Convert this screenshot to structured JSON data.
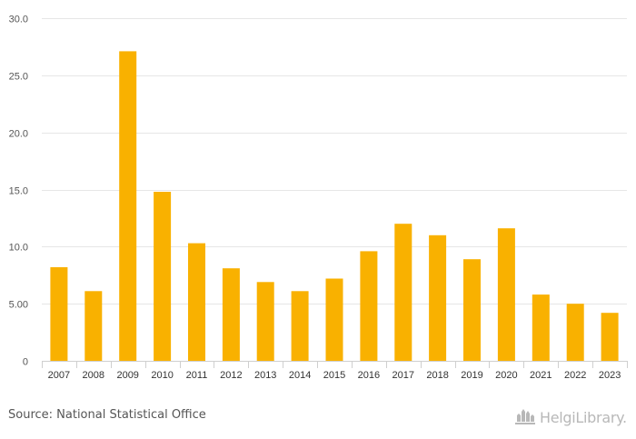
{
  "chart_data": {
    "type": "bar",
    "title": "",
    "xlabel": "",
    "ylabel": "",
    "categories": [
      "2007",
      "2008",
      "2009",
      "2010",
      "2011",
      "2012",
      "2013",
      "2014",
      "2015",
      "2016",
      "2017",
      "2018",
      "2019",
      "2020",
      "2021",
      "2022",
      "2023"
    ],
    "values": [
      8.2,
      6.1,
      27.1,
      14.8,
      10.3,
      8.1,
      6.9,
      6.1,
      7.2,
      9.6,
      12.0,
      11.0,
      8.9,
      11.6,
      5.8,
      5.0,
      4.2
    ],
    "ylim": [
      0,
      30
    ],
    "y_ticks": [
      0,
      5,
      10,
      15,
      20,
      25,
      30
    ],
    "y_tick_labels": [
      "0",
      "5.00",
      "10.0",
      "15.0",
      "20.0",
      "25.0",
      "30.0"
    ],
    "bar_color": "#f9b100",
    "grid": true
  },
  "footer": {
    "source": "Source: National Statistical Office",
    "logo_icon": "helgi-library-building-icon",
    "logo_text": "HelgiLibrary."
  }
}
